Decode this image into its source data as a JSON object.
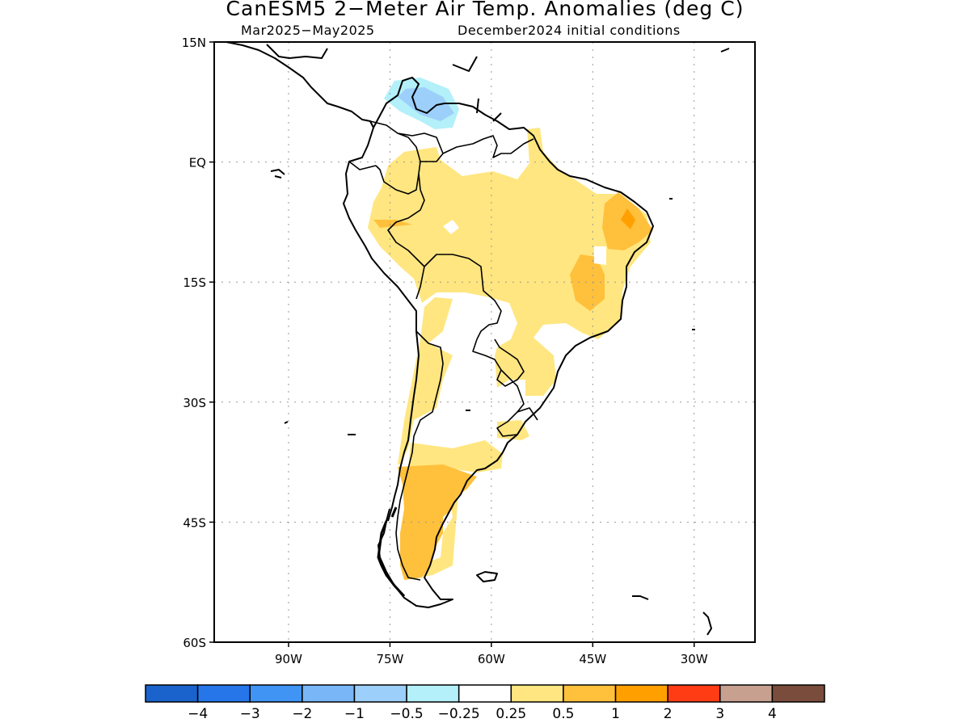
{
  "title": "CanESM5 2−Meter Air Temp. Anomalies (deg C)",
  "subtitle_period": "Mar2025−May2025",
  "subtitle_init": "December2024 initial conditions",
  "map": {
    "region": "South America",
    "lon_range": [
      -101,
      -21
    ],
    "lat_range": [
      -60,
      15
    ],
    "lat_ticks": [
      {
        "value": 15,
        "label": "15N"
      },
      {
        "value": 0,
        "label": "EQ"
      },
      {
        "value": -15,
        "label": "15S"
      },
      {
        "value": -30,
        "label": "30S"
      },
      {
        "value": -45,
        "label": "45S"
      },
      {
        "value": -60,
        "label": "60S"
      }
    ],
    "lon_ticks": [
      {
        "value": -90,
        "label": "90W"
      },
      {
        "value": -75,
        "label": "75W"
      },
      {
        "value": -60,
        "label": "60W"
      },
      {
        "value": -45,
        "label": "45W"
      },
      {
        "value": -30,
        "label": "30W"
      }
    ],
    "grid": "dotted"
  },
  "colorbar": {
    "colors": [
      "#1a63cc",
      "#2676ea",
      "#3f94f4",
      "#78b6f8",
      "#9ccff9",
      "#b3f0f9",
      "#ffffff",
      "#ffe680",
      "#ffc03c",
      "#ffa000",
      "#ff3c14",
      "#c8a090",
      "#7a4c3c"
    ],
    "labels": [
      "−4",
      "−3",
      "−2",
      "−1",
      "−0.5",
      "−0.25",
      "0.25",
      "0.5",
      "1",
      "2",
      "3",
      "4"
    ]
  },
  "chart_data": {
    "type": "heatmap",
    "title": "CanESM5 2−Meter Air Temp. Anomalies (deg C)",
    "xlabel": "",
    "ylabel": "",
    "xlim": [
      -101,
      -21
    ],
    "ylim": [
      -60,
      15
    ],
    "legend": "bottom",
    "anomaly_regions": [
      {
        "area": "Venezuela / Lake Maracaibo",
        "range": [
          -1,
          -0.25
        ]
      },
      {
        "area": "Amazon basin, northern and central Brazil",
        "range": [
          0.25,
          0.5
        ]
      },
      {
        "area": "Northeast Brazil",
        "range": [
          0.5,
          1
        ]
      },
      {
        "area": "Southern Andes / Chile coast",
        "range": [
          0.25,
          0.5
        ]
      },
      {
        "area": "Patagonia, Argentina",
        "range": [
          0.5,
          1
        ]
      },
      {
        "area": "Central Argentina, Paraguay, southern Brazil",
        "range": [
          -0.25,
          0.25
        ]
      }
    ]
  }
}
